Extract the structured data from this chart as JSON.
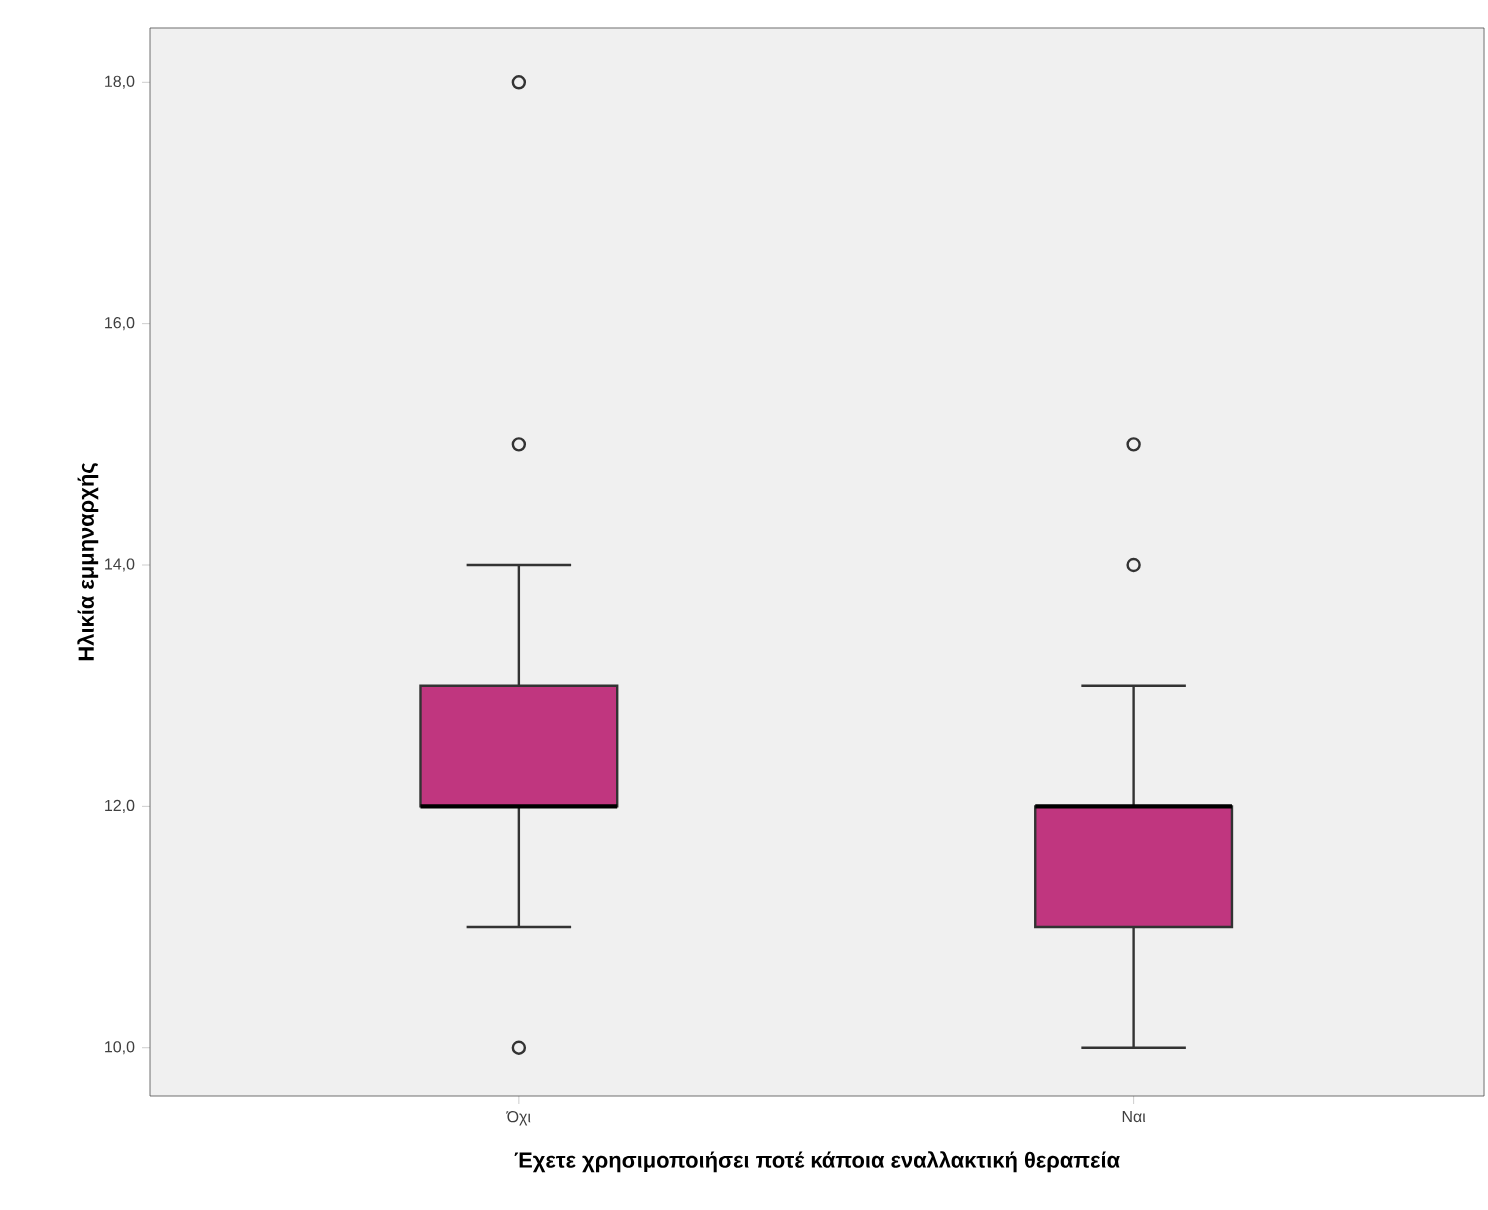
{
  "chart_data": {
    "type": "box",
    "xlabel": "Έχετε χρησιμοποιήσει ποτέ κάποια εναλλακτική θεραπεία",
    "ylabel": "Ηλικία εμμηναρχής",
    "categories": [
      "Όχι",
      "Ναι"
    ],
    "color": "#c0367f",
    "boxes": [
      {
        "low": 11,
        "q1": 12,
        "median": 12,
        "q3": 13,
        "high": 14,
        "outliers": [
          10,
          15,
          18
        ]
      },
      {
        "low": 10,
        "q1": 11,
        "median": 12,
        "q3": 12,
        "high": 13,
        "outliers": [
          14,
          15
        ]
      }
    ],
    "ylim": [
      9.6,
      18.45
    ],
    "yticks": [
      {
        "value": 10,
        "label": "10,0"
      },
      {
        "value": 12,
        "label": "12,0"
      },
      {
        "value": 14,
        "label": "14,0"
      },
      {
        "value": 16,
        "label": "16,0"
      },
      {
        "value": 18,
        "label": "18,0"
      }
    ],
    "grid": false
  }
}
